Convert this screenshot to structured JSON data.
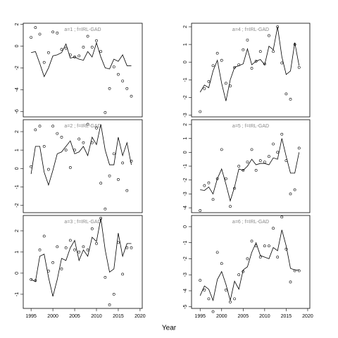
{
  "xlabel": "Year",
  "chart_data": [
    {
      "type": "line",
      "title": "a=1 ; f=IRL-GAD",
      "x": [
        1995,
        1996,
        1997,
        1998,
        1999,
        2000,
        2001,
        2002,
        2003,
        2004,
        2005,
        2006,
        2007,
        2008,
        2009,
        2010,
        2011,
        2012,
        2013,
        2014,
        2015,
        2016,
        2017,
        2018
      ],
      "xlim": [
        1993.2,
        2020.5
      ],
      "ylim": [
        -6.5,
        2.1
      ],
      "yticks": [
        2,
        0,
        -2,
        -4,
        -6
      ],
      "series": [
        {
          "mark": "point",
          "color": "#000000",
          "values": [
            0.8,
            1.7,
            1.1,
            -1.5,
            -0.6,
            1.3,
            1.2,
            -0.3,
            -0.2,
            -0.8,
            -1.0,
            -0.9,
            -0.1,
            0.9,
            -0.1,
            0.5,
            -0.5,
            -6.1,
            -3.9,
            -1.9,
            -2.6,
            -3.2,
            -3.9,
            -4.6
          ]
        },
        {
          "mark": "line",
          "color": "#000000",
          "values": [
            -0.6,
            -0.5,
            -1.6,
            -2.8,
            -2.0,
            -0.9,
            -0.8,
            -0.6,
            0.2,
            -1.1,
            -1.0,
            -1.2,
            -1.3,
            -0.5,
            -1.0,
            0.3,
            -1.0,
            -2.0,
            -2.1,
            -1.2,
            -1.4,
            -0.8,
            -1.8,
            -1.8
          ]
        }
      ]
    },
    {
      "type": "line",
      "title": "a=2 ; f=IRL-GAD",
      "x": [
        1995,
        1996,
        1997,
        1998,
        1999,
        2000,
        2001,
        2002,
        2003,
        2004,
        2005,
        2006,
        2007,
        2008,
        2009,
        2010,
        2011,
        2012,
        2013,
        2014,
        2015,
        2016,
        2017,
        2018
      ],
      "xlim": [
        1993.2,
        2020.5
      ],
      "ylim": [
        -2.4,
        2.65
      ],
      "yticks": [
        2,
        1,
        0,
        -1,
        -2
      ],
      "series": [
        {
          "mark": "point",
          "color": "#000000",
          "values": [
            0.1,
            2.1,
            2.3,
            1.2,
            -0.05,
            2.3,
            1.9,
            1.7,
            1.0,
            0.05,
            1.0,
            1.6,
            1.4,
            2.4,
            1.4,
            2.2,
            -0.8,
            -2.2,
            -0.4,
            0.8,
            -0.6,
            0.3,
            -1.2,
            0.4
          ]
        },
        {
          "mark": "line",
          "color": "#000000",
          "values": [
            -0.3,
            1.2,
            1.2,
            -0.2,
            -0.9,
            -0.1,
            0.8,
            0.9,
            1.2,
            1.5,
            0.8,
            0.9,
            1.2,
            0.7,
            1.7,
            1.3,
            2.4,
            1.0,
            0.2,
            0.2,
            1.7,
            0.7,
            1.4,
            0.2
          ]
        }
      ]
    },
    {
      "type": "line",
      "title": "a=3 ; f=IRL-GAD",
      "x": [
        1995,
        1996,
        1997,
        1998,
        1999,
        2000,
        2001,
        2002,
        2003,
        2004,
        2005,
        2006,
        2007,
        2008,
        2009,
        2010,
        2011,
        2012,
        2013,
        2014,
        2015,
        2016,
        2017,
        2018
      ],
      "xlim": [
        1993.2,
        2020.5
      ],
      "xticks": [
        1995,
        2000,
        2005,
        2010,
        2015,
        2020
      ],
      "ylim": [
        -1.67,
        2.73
      ],
      "yticks": [
        2,
        1,
        0,
        -1
      ],
      "series": [
        {
          "mark": "point",
          "color": "#000000",
          "values": [
            -0.3,
            -0.35,
            1.1,
            1.75,
            0.1,
            0.5,
            1.25,
            0.2,
            1.2,
            1.55,
            1.1,
            1.0,
            1.25,
            1.1,
            2.1,
            1.4,
            2.6,
            -0.2,
            -1.5,
            -1.0,
            1.45,
            -0.05,
            1.2,
            1.2
          ]
        },
        {
          "mark": "line",
          "color": "#000000",
          "values": [
            -0.3,
            -0.4,
            0.8,
            0.9,
            -0.2,
            -1.1,
            -0.3,
            0.7,
            0.6,
            1.2,
            1.55,
            0.6,
            1.1,
            0.8,
            1.7,
            1.5,
            2.6,
            1.1,
            0.05,
            0.2,
            1.9,
            0.8,
            1.4,
            1.4
          ]
        }
      ]
    },
    {
      "type": "line",
      "title": "a=4 ; f=IRL-GAD",
      "x": [
        1995,
        1996,
        1997,
        1998,
        1999,
        2000,
        2001,
        2002,
        2003,
        2004,
        2005,
        2006,
        2007,
        2008,
        2009,
        2010,
        2011,
        2012,
        2013,
        2014,
        2015,
        2016,
        2017,
        2018
      ],
      "xlim": [
        1993.0,
        2020.5
      ],
      "ylim": [
        -3.1,
        2.2
      ],
      "yticks": [
        2,
        1,
        0,
        -1,
        -2,
        -3
      ],
      "series": [
        {
          "mark": "point",
          "color": "#000000",
          "values": [
            -2.8,
            -1.5,
            -1.1,
            -0.2,
            0.5,
            0.1,
            -1.2,
            -1.35,
            -0.3,
            -0.15,
            0.7,
            1.25,
            -0.35,
            0.05,
            0.6,
            -0.1,
            1.5,
            0.6,
            2.0,
            -0.05,
            -1.8,
            -2.1,
            1.0,
            -0.3
          ]
        },
        {
          "mark": "line",
          "color": "#000000",
          "values": [
            -1.7,
            -1.3,
            -1.45,
            -0.5,
            0.1,
            -1.2,
            -2.2,
            -1.0,
            -0.3,
            -0.2,
            -0.1,
            0.75,
            -0.15,
            0.05,
            0.15,
            -0.15,
            0.9,
            0.7,
            2.0,
            0.3,
            -0.7,
            -0.5,
            1.1,
            -0.2
          ]
        }
      ]
    },
    {
      "type": "line",
      "title": "a=5 ; f=IRL-GAD",
      "x": [
        1995,
        1996,
        1997,
        1998,
        1999,
        2000,
        2001,
        2002,
        2003,
        2004,
        2005,
        2006,
        2007,
        2008,
        2009,
        2010,
        2011,
        2012,
        2013,
        2014,
        2015,
        2016,
        2017,
        2018
      ],
      "xlim": [
        1993.0,
        2020.5
      ],
      "ylim": [
        -4.35,
        2.35
      ],
      "yticks": [
        2,
        1,
        0,
        -1,
        -2,
        -3,
        -4
      ],
      "series": [
        {
          "mark": "point",
          "color": "#000000",
          "values": [
            -4.2,
            -2.4,
            -2.2,
            -3.4,
            -1.9,
            0.2,
            -1.9,
            -3.9,
            -2.6,
            -1.0,
            -1.3,
            -0.7,
            0.2,
            -1.3,
            -0.6,
            -0.7,
            -0.3,
            0.6,
            0.0,
            1.3,
            -0.6,
            -3.0,
            -2.7,
            0.3
          ]
        },
        {
          "mark": "line",
          "color": "#000000",
          "values": [
            -2.7,
            -2.75,
            -2.5,
            -3.0,
            -1.9,
            -1.2,
            -2.3,
            -3.5,
            -2.5,
            -1.2,
            -1.3,
            -1.0,
            -0.5,
            -0.9,
            -0.8,
            -0.8,
            -0.9,
            -0.4,
            -0.5,
            1.0,
            -0.3,
            -1.5,
            -1.5,
            0.0
          ]
        }
      ]
    },
    {
      "type": "line",
      "title": "a=6 ; f=IRL-GAD",
      "x": [
        1995,
        1996,
        1997,
        1998,
        1999,
        2000,
        2001,
        2002,
        2003,
        2004,
        2005,
        2006,
        2007,
        2008,
        2009,
        2010,
        2011,
        2012,
        2013,
        2014,
        2015,
        2016,
        2017,
        2018
      ],
      "xlim": [
        1993.0,
        2020.5
      ],
      "xticks": [
        1995,
        2000,
        2005,
        2010,
        2015,
        2020
      ],
      "ylim": [
        -5.1,
        0.7
      ],
      "yticks": [
        0,
        -1,
        -2,
        -3,
        -4,
        -5
      ],
      "series": [
        {
          "mark": "point",
          "color": "#000000",
          "values": [
            -3.35,
            -3.95,
            -4.5,
            -5.3,
            -1.6,
            -2.3,
            -3.95,
            -4.7,
            -4.5,
            -3.0,
            -2.8,
            -2.0,
            -0.9,
            -1.2,
            -1.9,
            -1.2,
            -1.2,
            -0.1,
            -1.9,
            0.6,
            -1.4,
            -3.45,
            -2.75,
            -2.75
          ]
        },
        {
          "mark": "line",
          "color": "#000000",
          "values": [
            -4.3,
            -3.7,
            -3.9,
            -4.6,
            -3.3,
            -2.8,
            -3.6,
            -4.6,
            -3.4,
            -3.9,
            -2.7,
            -2.5,
            -1.6,
            -1.0,
            -1.8,
            -1.9,
            -2.0,
            -1.3,
            -1.5,
            -0.2,
            -1.2,
            -2.6,
            -2.7,
            -2.7
          ]
        }
      ]
    }
  ]
}
